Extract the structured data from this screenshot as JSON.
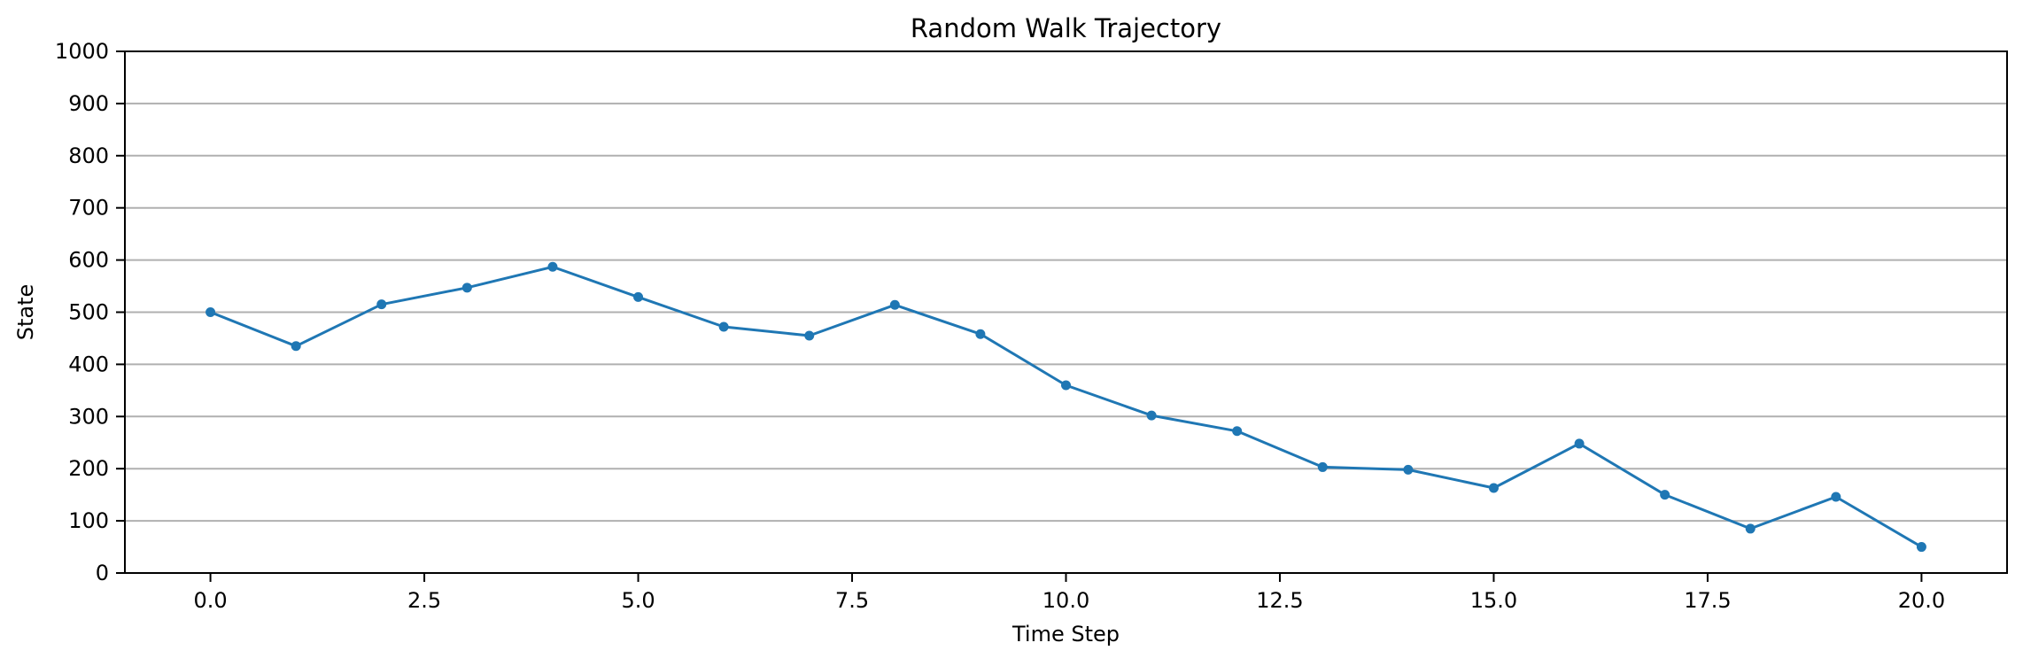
{
  "chart_data": {
    "type": "line",
    "title": "Random Walk Trajectory",
    "xlabel": "Time Step",
    "ylabel": "State",
    "xlim": [
      -1,
      21
    ],
    "ylim": [
      0,
      1000
    ],
    "xticks": [
      0.0,
      2.5,
      5.0,
      7.5,
      10.0,
      12.5,
      15.0,
      17.5,
      20.0
    ],
    "xtick_labels": [
      "0.0",
      "2.5",
      "5.0",
      "7.5",
      "10.0",
      "12.5",
      "15.0",
      "17.5",
      "20.0"
    ],
    "yticks": [
      0,
      100,
      200,
      300,
      400,
      500,
      600,
      700,
      800,
      900,
      1000
    ],
    "ytick_labels": [
      "0",
      "100",
      "200",
      "300",
      "400",
      "500",
      "600",
      "700",
      "800",
      "900",
      "1000"
    ],
    "grid": "horizontal",
    "legend": "none",
    "series": [
      {
        "color": "#1f77b4",
        "marker": "circle",
        "x": [
          0,
          1,
          2,
          3,
          4,
          5,
          6,
          7,
          8,
          9,
          10,
          11,
          12,
          13,
          14,
          15,
          16,
          17,
          18,
          19,
          20
        ],
        "y": [
          500,
          435,
          515,
          547,
          587,
          529,
          472,
          455,
          514,
          458,
          360,
          302,
          272,
          203,
          198,
          163,
          248,
          150,
          85,
          146,
          50
        ]
      }
    ]
  }
}
